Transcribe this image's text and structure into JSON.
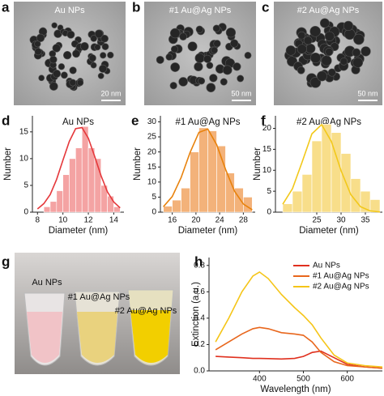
{
  "figure": {
    "panels": [
      "a",
      "b",
      "c",
      "d",
      "e",
      "f",
      "g",
      "h"
    ],
    "tem": [
      {
        "label": "Au NPs",
        "scale": "20 nm"
      },
      {
        "label": "#1 Au@Ag NPs",
        "scale": "50 nm"
      },
      {
        "label": "#2 Au@Ag NPs",
        "scale": "50 nm"
      }
    ],
    "photo_labels": [
      "Au NPs",
      "#1 Au@Ag NPs",
      "#2 Au@Ag NPs"
    ]
  },
  "chart_data": [
    {
      "type": "histogram",
      "title": "Au NPs",
      "x_label": "Diameter (nm)",
      "y_label": "Number",
      "bins": [
        8.5,
        9,
        9.5,
        10,
        10.5,
        11,
        11.5,
        12,
        12.5,
        13,
        13.5,
        14,
        14.5
      ],
      "values": [
        1,
        2,
        4,
        7,
        10,
        12,
        16,
        12,
        10,
        5,
        3,
        1
      ],
      "color": "#f4a3a3",
      "fit_color": "#e5383b",
      "fit_x": [
        8,
        8.5,
        9,
        9.5,
        10,
        10.5,
        11,
        11.5,
        12,
        12.5,
        13,
        13.5,
        14,
        14.5
      ],
      "fit_values": [
        0.6,
        1.6,
        3.3,
        6.1,
        9.7,
        13.2,
        15.6,
        15.8,
        13.8,
        10.4,
        6.8,
        3.8,
        1.9,
        0.8
      ],
      "xlim": [
        7.6,
        14.8
      ],
      "xticks": [
        8,
        10,
        12,
        14
      ],
      "ylim": [
        0,
        18
      ],
      "yticks": [
        0,
        5,
        10,
        15
      ]
    },
    {
      "type": "histogram",
      "title": "#1 Au@Ag NPs",
      "x_label": "Diameter (nm)",
      "y_label": "Number",
      "bins": [
        14.5,
        16,
        17.5,
        19,
        20.5,
        22,
        23.5,
        25,
        26.5,
        28,
        29.5
      ],
      "values": [
        2,
        4,
        8,
        20,
        28,
        27,
        22,
        13,
        8,
        5
      ],
      "color": "#f3b27a",
      "fit_color": "#e8820c",
      "fit_x": [
        14.5,
        16,
        17.5,
        19,
        20.5,
        22,
        23.5,
        25,
        26.5,
        28,
        29.5
      ],
      "fit_values": [
        1.8,
        5.2,
        11.5,
        19.8,
        26.5,
        27.6,
        22.4,
        14.2,
        7,
        2.7,
        0.8
      ],
      "xlim": [
        14,
        30
      ],
      "xticks": [
        16,
        20,
        24,
        28
      ],
      "ylim": [
        0,
        32
      ],
      "yticks": [
        0,
        5,
        10,
        15,
        20,
        25,
        30
      ]
    },
    {
      "type": "histogram",
      "title": "#2 Au@Ag NPs",
      "x_label": "Diameter (nm)",
      "y_label": "Number",
      "bins": [
        18,
        20,
        22,
        24,
        26,
        28,
        30,
        32,
        34,
        36,
        38
      ],
      "values": [
        2,
        5,
        9,
        17,
        21,
        19,
        14,
        8,
        5,
        3
      ],
      "color": "#f8de8a",
      "fit_color": "#f2c81a",
      "fit_x": [
        18,
        20,
        22,
        24,
        26,
        28,
        30,
        32,
        34,
        36,
        38
      ],
      "fit_values": [
        1.9,
        5.6,
        12,
        18.7,
        20.9,
        16.9,
        9.9,
        4.2,
        1.3,
        0.3,
        0.05
      ],
      "xlim": [
        16.5,
        38.5
      ],
      "xticks": [
        25,
        30,
        35
      ],
      "ylim": [
        0,
        23
      ],
      "yticks": [
        0,
        5,
        10,
        15,
        20
      ]
    },
    {
      "type": "line",
      "x_label": "Wavelength (nm)",
      "y_label": "Extinction (a.u.)",
      "legend": "upper right",
      "x": [
        300,
        330,
        360,
        385,
        400,
        420,
        450,
        480,
        500,
        520,
        540,
        570,
        600,
        640,
        680
      ],
      "series": [
        {
          "name": "Au NPs",
          "color": "#e0301e",
          "values": [
            0.11,
            0.105,
            0.1,
            0.095,
            0.095,
            0.093,
            0.09,
            0.095,
            0.11,
            0.14,
            0.15,
            0.1,
            0.05,
            0.03,
            0.02
          ]
        },
        {
          "name": "#1 Au@Ag NPs",
          "color": "#e8661c",
          "values": [
            0.16,
            0.22,
            0.28,
            0.32,
            0.33,
            0.32,
            0.29,
            0.28,
            0.27,
            0.22,
            0.14,
            0.07,
            0.04,
            0.03,
            0.02
          ]
        },
        {
          "name": "#2 Au@Ag NPs",
          "color": "#f5c518",
          "values": [
            0.22,
            0.4,
            0.6,
            0.72,
            0.75,
            0.7,
            0.58,
            0.48,
            0.42,
            0.35,
            0.25,
            0.12,
            0.06,
            0.04,
            0.03
          ]
        }
      ],
      "xlim": [
        285,
        680
      ],
      "xticks": [
        400,
        500,
        600
      ],
      "ylim": [
        0,
        0.86
      ],
      "yticks": [
        {
          "value": 0,
          "label": "0.0"
        },
        0.2,
        0.4,
        0.6,
        0.8
      ]
    }
  ]
}
